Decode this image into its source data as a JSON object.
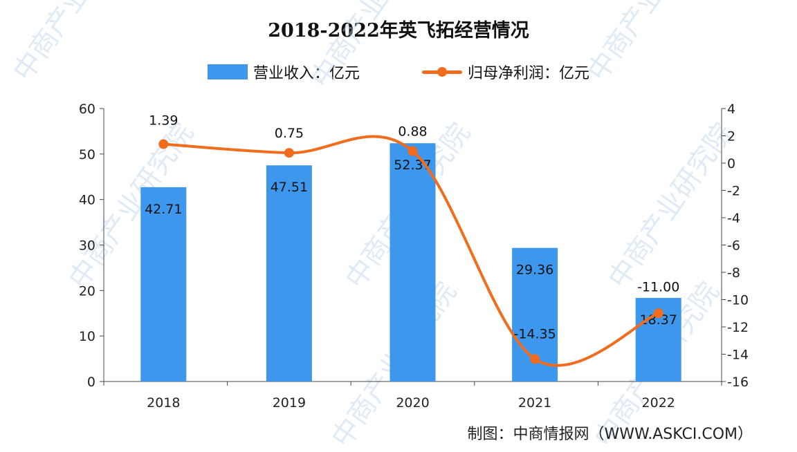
{
  "chart_data": {
    "type": "bar+line",
    "title": "2018-2022年英飞拓经营情况",
    "categories": [
      "2018",
      "2019",
      "2020",
      "2021",
      "2022"
    ],
    "series": [
      {
        "name": "营业收入：亿元",
        "type": "bar",
        "axis": "left",
        "values": [
          42.71,
          47.51,
          52.37,
          29.36,
          18.37
        ],
        "labels": [
          "42.71",
          "47.51",
          "52.37",
          "29.36",
          "18.37"
        ],
        "color": "#3d97ec"
      },
      {
        "name": "归母净利润：亿元",
        "type": "line",
        "axis": "right",
        "values": [
          1.39,
          0.75,
          0.88,
          -14.35,
          -11.0
        ],
        "labels": [
          "1.39",
          "0.75",
          "0.88",
          "-14.35",
          "-11.00"
        ],
        "color": "#f26c1d"
      }
    ],
    "left_axis": {
      "ylim": [
        0,
        60
      ],
      "ticks": [
        "0",
        "10",
        "20",
        "30",
        "40",
        "50",
        "60"
      ]
    },
    "right_axis": {
      "ylim": [
        -16,
        4
      ],
      "ticks": [
        "-16",
        "-14",
        "-12",
        "-10",
        "-8",
        "-6",
        "-4",
        "-2",
        "0",
        "2",
        "4"
      ]
    },
    "grid": false,
    "legend_position": "top"
  },
  "source": "制图：中商情报网（WWW.ASKCI.COM）",
  "watermark": "中商产业研究院"
}
